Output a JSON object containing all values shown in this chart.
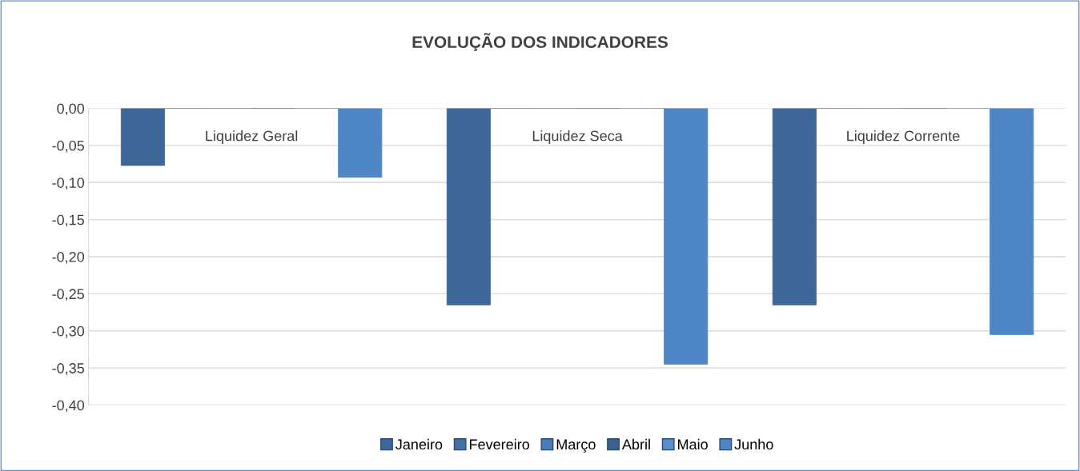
{
  "chart_data": {
    "type": "bar",
    "title": "EVOLUÇÃO DOS INDICADORES",
    "categories": [
      "Liquidez Geral",
      "Liquidez Seca",
      "Liquidez Corrente"
    ],
    "series": [
      {
        "name": "Janeiro",
        "color": "#3f6797",
        "values": [
          -0.077,
          -0.265,
          -0.265
        ]
      },
      {
        "name": "Fevereiro",
        "color": "#4470a6",
        "values": [
          0,
          0,
          0
        ]
      },
      {
        "name": "Março",
        "color": "#4a7bb7",
        "values": [
          0,
          0,
          0
        ]
      },
      {
        "name": "Abril",
        "color": "#3c5f8c",
        "values": [
          0,
          0,
          0
        ]
      },
      {
        "name": "Maio",
        "color": "#5a8dcc",
        "values": [
          0,
          0,
          0
        ]
      },
      {
        "name": "Junho",
        "color": "#4f86c6",
        "values": [
          -0.093,
          -0.345,
          -0.305
        ]
      }
    ],
    "ylim": [
      -0.4,
      0
    ],
    "yticks": [
      {
        "value": 0,
        "label": "0,00"
      },
      {
        "value": -0.05,
        "label": "-0,05"
      },
      {
        "value": -0.1,
        "label": "-0,10"
      },
      {
        "value": -0.15,
        "label": "-0,15"
      },
      {
        "value": -0.2,
        "label": "-0,20"
      },
      {
        "value": -0.25,
        "label": "-0,25"
      },
      {
        "value": -0.3,
        "label": "-0,30"
      },
      {
        "value": -0.35,
        "label": "-0,35"
      },
      {
        "value": -0.4,
        "label": "-0,40"
      }
    ],
    "grid": "y",
    "legend": "bottom"
  }
}
